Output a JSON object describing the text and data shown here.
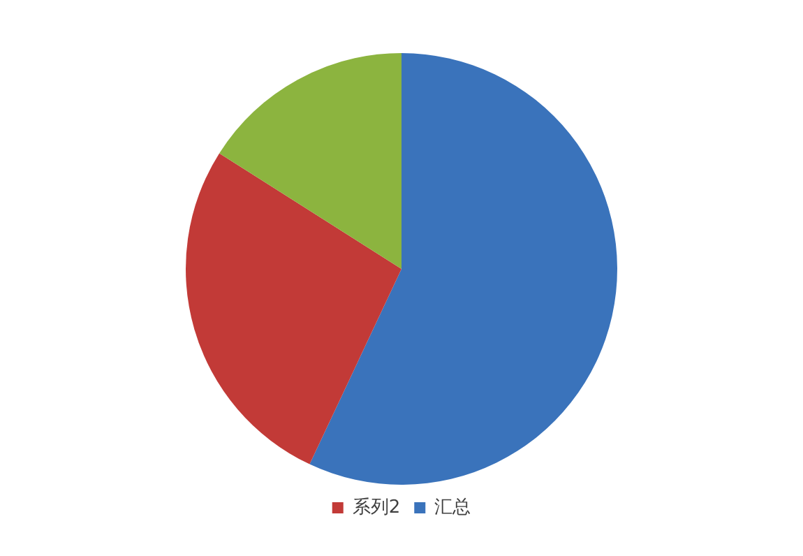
{
  "chart_data": {
    "type": "pie",
    "categories": [
      "汇总",
      "系列2",
      null
    ],
    "values": [
      57,
      27,
      16
    ],
    "colors": [
      "#3a73bb",
      "#c23a37",
      "#8cb43f"
    ],
    "legend": "bottom"
  }
}
